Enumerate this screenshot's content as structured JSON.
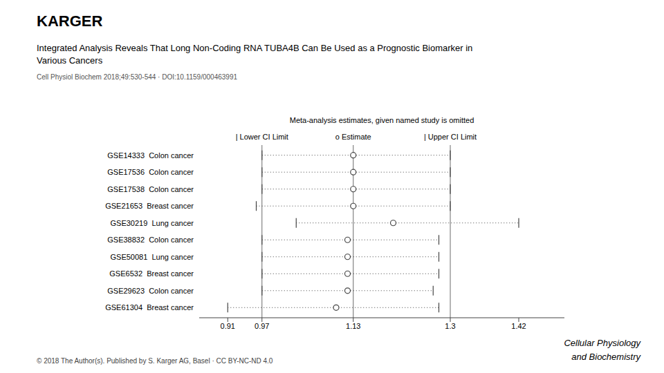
{
  "chart_data": {
    "type": "forest",
    "title": [
      "Integrated Analysis Reveals That Long Non-Coding RNA TUBA4B Can Be Used as a Prognostic Biomarker in",
      "Various Cancers"
    ],
    "subtitle": "Cell Physiol Biochem 2018;49:530-544 · DOI:10.1159/000463991",
    "logo": "KARGER",
    "legend_title": "Meta-analysis estimates, given named study is omitted",
    "legend_entries": [
      "| Lower CI Limit",
      "o Estimate",
      "| Upper CI Limit"
    ],
    "footer": "© 2018 The Author(s). Published by S. Karger AG, Basel · CC BY-NC-ND 4.0",
    "journal": [
      "Cellular Physiology",
      "and Biochemistry"
    ],
    "categories": [
      "GSE14333  Colon cancer",
      "GSE17536  Colon cancer",
      "GSE17538  Colon cancer",
      "GSE21653  Breast cancer",
      "GSE30219  Lung cancer",
      "GSE38832  Colon cancer",
      "GSE50081  Lung cancer",
      "GSE6532  Breast cancer",
      "GSE29623  Colon cancer",
      "GSE61304  Breast cancer"
    ],
    "values": [
      1.13,
      1.13,
      1.13,
      1.13,
      1.2,
      1.12,
      1.12,
      1.12,
      1.12,
      1.1
    ],
    "lower": [
      0.97,
      0.97,
      0.97,
      0.96,
      1.03,
      0.97,
      0.97,
      0.97,
      0.97,
      0.91
    ],
    "upper": [
      1.3,
      1.3,
      1.3,
      1.3,
      1.42,
      1.28,
      1.28,
      1.28,
      1.27,
      1.28
    ],
    "ref_lines": [
      0.97,
      1.13,
      1.3
    ],
    "xlim": [
      0.86,
      1.5
    ],
    "xticks": [
      0.91,
      0.97,
      1.13,
      1.3,
      1.42
    ],
    "color": "#444444",
    "marker": "circle",
    "line_style": "dotted",
    "grid": false
  }
}
